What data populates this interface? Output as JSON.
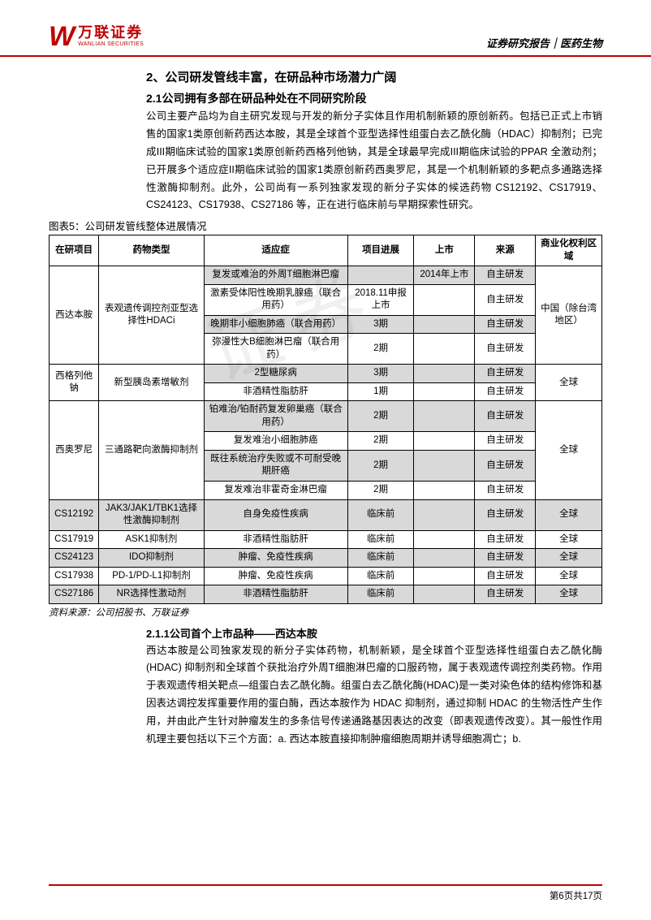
{
  "header": {
    "logo_cn": "万联证券",
    "logo_en": "WANLIAN SECURITIES",
    "right": "证券研究报告｜医药生物"
  },
  "section": {
    "h2": "2、公司研发管线丰富，在研品种市场潜力广阔",
    "h3": "2.1公司拥有多部在研品种处在不同研究阶段",
    "para1": "公司主要产品均为自主研究发现与开发的新分子实体且作用机制新颖的原创新药。包括已正式上市销售的国家1类原创新药西达本胺，其是全球首个亚型选择性组蛋白去乙酰化酶（HDAC）抑制剂；已完成III期临床试验的国家1类原创新药西格列他钠，其是全球最早完成III期临床试验的PPAR 全激动剂；已开展多个适应症II期临床试验的国家1类原创新药西奥罗尼，其是一个机制新颖的多靶点多通路选择性激酶抑制剂。此外，公司尚有一系列独家发现的新分子实体的候选药物 CS12192、CS17919、CS24123、CS17938、CS27186 等，正在进行临床前与早期探索性研究。"
  },
  "table": {
    "caption": "图表5：公司研发管线整体进展情况",
    "headers": [
      "在研项目",
      "药物类型",
      "适应症",
      "项目进展",
      "上市",
      "来源",
      "商业化权利区域"
    ],
    "rows": [
      {
        "stripe": true,
        "c": [
          "西达本胺",
          "表观遗传调控剂亚型选择性HDACi",
          "复发或难治的外周T细胞淋巴瘤",
          "",
          "2014年上市",
          "自主研发",
          "中国（除台湾地区）"
        ],
        "rowspan_col0": 4,
        "rowspan_col1": 4,
        "rowspan_col6": 4
      },
      {
        "stripe": false,
        "c": [
          null,
          null,
          "激素受体阳性晚期乳腺癌（联合用药）",
          "2018.11申报上市",
          "",
          "自主研发",
          null
        ]
      },
      {
        "stripe": true,
        "c": [
          null,
          null,
          "晚期非小细胞肺癌（联合用药）",
          "3期",
          "",
          "自主研发",
          null
        ]
      },
      {
        "stripe": false,
        "c": [
          null,
          null,
          "弥漫性大B细胞淋巴瘤（联合用药）",
          "2期",
          "",
          "自主研发",
          null
        ]
      },
      {
        "stripe": true,
        "c": [
          "西格列他钠",
          "新型胰岛素增敏剂",
          "2型糖尿病",
          "3期",
          "",
          "自主研发",
          "全球"
        ],
        "rowspan_col0": 2,
        "rowspan_col1": 2,
        "rowspan_col6": 2
      },
      {
        "stripe": false,
        "c": [
          null,
          null,
          "非酒精性脂肪肝",
          "1期",
          "",
          "自主研发",
          null
        ]
      },
      {
        "stripe": true,
        "c": [
          "西奥罗尼",
          "三通路靶向激酶抑制剂",
          "铂难治/铂耐药复发卵巢癌（联合用药）",
          "2期",
          "",
          "自主研发",
          "全球"
        ],
        "rowspan_col0": 4,
        "rowspan_col1": 4,
        "rowspan_col6": 4
      },
      {
        "stripe": false,
        "c": [
          null,
          null,
          "复发难治小细胞肺癌",
          "2期",
          "",
          "自主研发",
          null
        ]
      },
      {
        "stripe": true,
        "c": [
          null,
          null,
          "既往系统治疗失败或不可耐受晚期肝癌",
          "2期",
          "",
          "自主研发",
          null
        ]
      },
      {
        "stripe": false,
        "c": [
          null,
          null,
          "复发难治非霍奇金淋巴瘤",
          "2期",
          "",
          "自主研发",
          null
        ]
      },
      {
        "stripe": true,
        "c": [
          "CS12192",
          "JAK3/JAK1/TBK1选择性激酶抑制剂",
          "自身免疫性疾病",
          "临床前",
          "",
          "自主研发",
          "全球"
        ]
      },
      {
        "stripe": false,
        "c": [
          "CS17919",
          "ASK1抑制剂",
          "非酒精性脂肪肝",
          "临床前",
          "",
          "自主研发",
          "全球"
        ]
      },
      {
        "stripe": true,
        "c": [
          "CS24123",
          "IDO抑制剂",
          "肿瘤、免疫性疾病",
          "临床前",
          "",
          "自主研发",
          "全球"
        ]
      },
      {
        "stripe": false,
        "c": [
          "CS17938",
          "PD-1/PD-L1抑制剂",
          "肿瘤、免疫性疾病",
          "临床前",
          "",
          "自主研发",
          "全球"
        ]
      },
      {
        "stripe": true,
        "c": [
          "CS27186",
          "NR选择性激动剂",
          "非酒精性脂肪肝",
          "临床前",
          "",
          "自主研发",
          "全球"
        ]
      }
    ],
    "source": "资料来源：公司招股书、万联证券",
    "col_widths": [
      "9%",
      "19%",
      "26%",
      "12%",
      "11%",
      "11%",
      "12%"
    ]
  },
  "subsection": {
    "h4": "2.1.1公司首个上市品种——西达本胺",
    "para": "西达本胺是公司独家发现的新分子实体药物，机制新颖，是全球首个亚型选择性组蛋白去乙酰化酶 (HDAC) 抑制剂和全球首个获批治疗外周T细胞淋巴瘤的口服药物，属于表观遗传调控剂类药物。作用于表观遗传相关靶点—组蛋白去乙酰化酶。组蛋白去乙酰化酶(HDAC)是一类对染色体的结构修饰和基因表达调控发挥重要作用的蛋白酶，西达本胺作为 HDAC 抑制剂，通过抑制 HDAC 的生物活性产生作用，并由此产生针对肿瘤发生的多条信号传递通路基因表达的改变（即表观遗传改变）。其一般性作用机理主要包括以下三个方面：a. 西达本胺直接抑制肿瘤细胞周期并诱导细胞凋亡；b."
  },
  "footer": {
    "page": "第6页共17页"
  },
  "watermark": "证券"
}
